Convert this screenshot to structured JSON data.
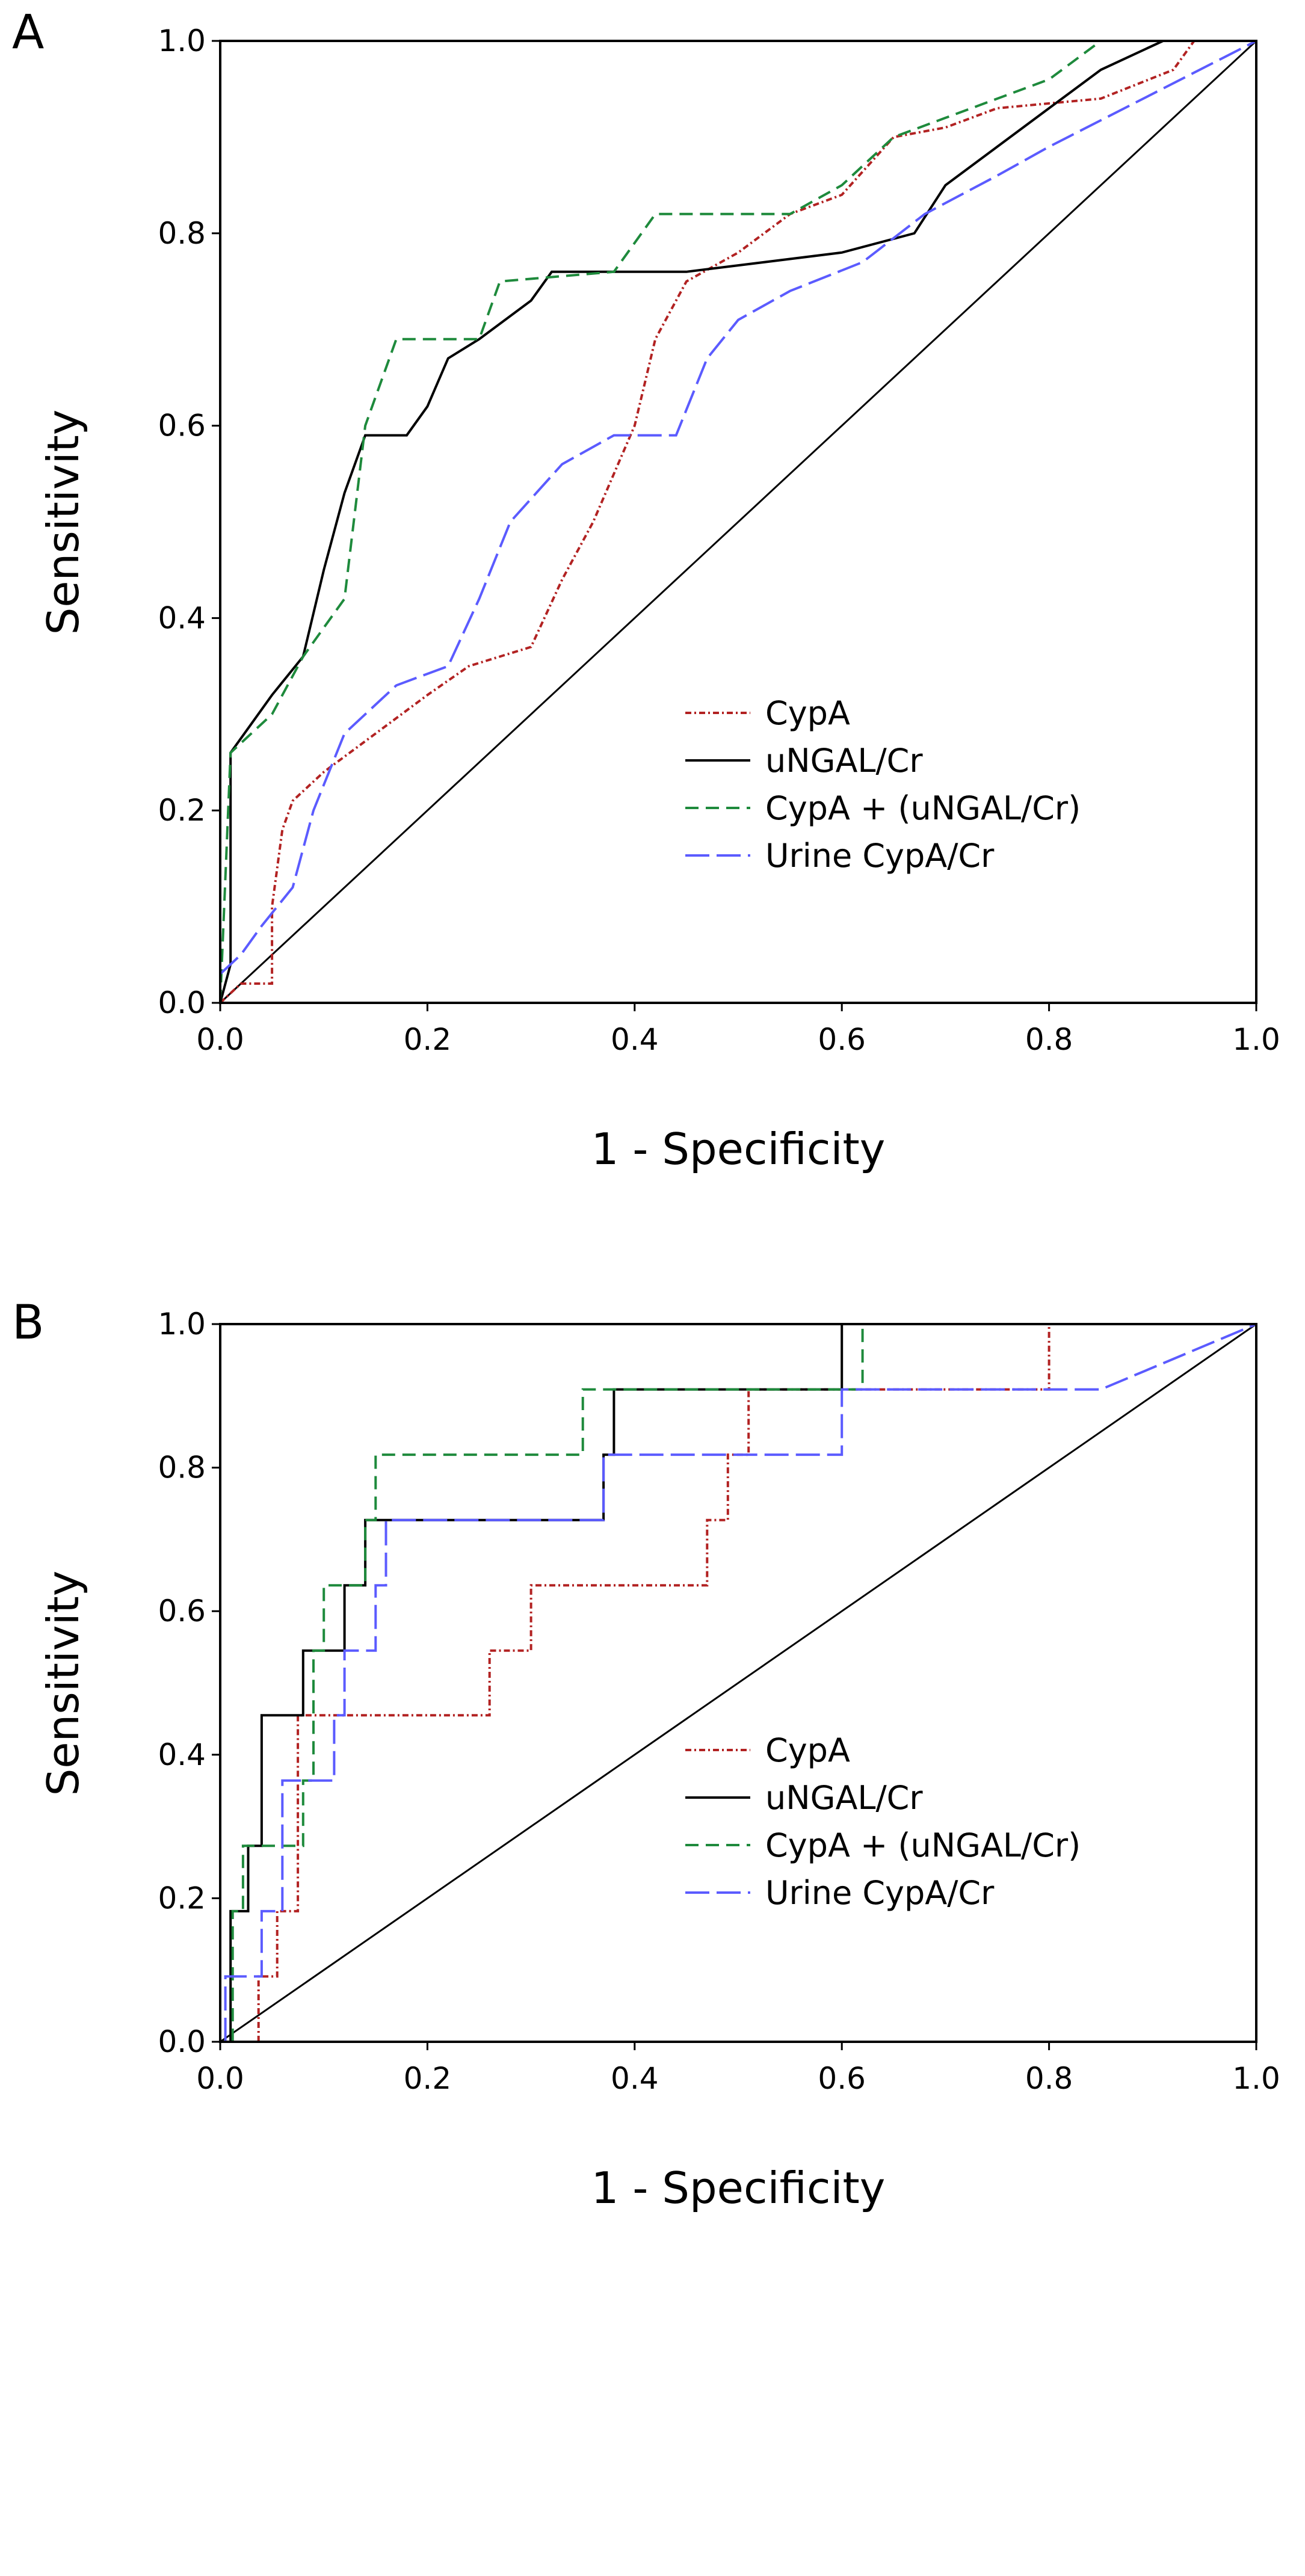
{
  "chart_data": [
    {
      "type": "line",
      "panel_label": "A",
      "xlabel": "1 - Specificity",
      "ylabel": "Sensitivity",
      "xlim": [
        0,
        1
      ],
      "ylim": [
        0,
        1
      ],
      "xticks": [
        "0.0",
        "0.2",
        "0.4",
        "0.6",
        "0.8",
        "1.0"
      ],
      "yticks": [
        "0.0",
        "0.2",
        "0.4",
        "0.6",
        "0.8",
        "1.0"
      ],
      "legend_position": "bottom-right",
      "reference_line": true,
      "series": [
        {
          "name": "CypA",
          "color": "#b22222",
          "dash": "dot-dash",
          "points": [
            [
              0,
              0
            ],
            [
              0.02,
              0.02
            ],
            [
              0.05,
              0.02
            ],
            [
              0.05,
              0.1
            ],
            [
              0.06,
              0.18
            ],
            [
              0.07,
              0.21
            ],
            [
              0.1,
              0.24
            ],
            [
              0.15,
              0.28
            ],
            [
              0.2,
              0.32
            ],
            [
              0.24,
              0.35
            ],
            [
              0.3,
              0.37
            ],
            [
              0.33,
              0.44
            ],
            [
              0.36,
              0.5
            ],
            [
              0.4,
              0.6
            ],
            [
              0.42,
              0.69
            ],
            [
              0.45,
              0.75
            ],
            [
              0.5,
              0.78
            ],
            [
              0.55,
              0.82
            ],
            [
              0.6,
              0.84
            ],
            [
              0.65,
              0.9
            ],
            [
              0.7,
              0.91
            ],
            [
              0.75,
              0.93
            ],
            [
              0.85,
              0.94
            ],
            [
              0.92,
              0.97
            ],
            [
              0.94,
              1.0
            ],
            [
              1,
              1
            ]
          ]
        },
        {
          "name": "uNGAL/Cr",
          "color": "#000000",
          "dash": "solid",
          "points": [
            [
              0,
              0
            ],
            [
              0.01,
              0.04
            ],
            [
              0.01,
              0.26
            ],
            [
              0.03,
              0.29
            ],
            [
              0.05,
              0.32
            ],
            [
              0.08,
              0.36
            ],
            [
              0.1,
              0.45
            ],
            [
              0.12,
              0.53
            ],
            [
              0.14,
              0.59
            ],
            [
              0.18,
              0.59
            ],
            [
              0.2,
              0.62
            ],
            [
              0.22,
              0.67
            ],
            [
              0.25,
              0.69
            ],
            [
              0.3,
              0.73
            ],
            [
              0.32,
              0.76
            ],
            [
              0.45,
              0.76
            ],
            [
              0.6,
              0.78
            ],
            [
              0.67,
              0.8
            ],
            [
              0.7,
              0.85
            ],
            [
              0.75,
              0.89
            ],
            [
              0.8,
              0.93
            ],
            [
              0.85,
              0.97
            ],
            [
              0.91,
              1.0
            ],
            [
              1,
              1
            ]
          ]
        },
        {
          "name": "CypA + (uNGAL/Cr)",
          "color": "#1e8a3c",
          "dash": "dashed",
          "points": [
            [
              0,
              0
            ],
            [
              0.01,
              0.26
            ],
            [
              0.05,
              0.3
            ],
            [
              0.08,
              0.36
            ],
            [
              0.12,
              0.42
            ],
            [
              0.14,
              0.6
            ],
            [
              0.15,
              0.63
            ],
            [
              0.17,
              0.69
            ],
            [
              0.25,
              0.69
            ],
            [
              0.27,
              0.75
            ],
            [
              0.38,
              0.76
            ],
            [
              0.42,
              0.82
            ],
            [
              0.55,
              0.82
            ],
            [
              0.6,
              0.85
            ],
            [
              0.65,
              0.9
            ],
            [
              0.7,
              0.92
            ],
            [
              0.8,
              0.96
            ],
            [
              0.85,
              1.0
            ],
            [
              1,
              1
            ]
          ]
        },
        {
          "name": "Urine CypA/Cr",
          "color": "#5b5bff",
          "dash": "long-dash",
          "points": [
            [
              0,
              0.03
            ],
            [
              0.02,
              0.05
            ],
            [
              0.04,
              0.08
            ],
            [
              0.07,
              0.12
            ],
            [
              0.09,
              0.2
            ],
            [
              0.12,
              0.28
            ],
            [
              0.17,
              0.33
            ],
            [
              0.22,
              0.35
            ],
            [
              0.25,
              0.42
            ],
            [
              0.28,
              0.5
            ],
            [
              0.33,
              0.56
            ],
            [
              0.38,
              0.59
            ],
            [
              0.44,
              0.59
            ],
            [
              0.47,
              0.67
            ],
            [
              0.5,
              0.71
            ],
            [
              0.55,
              0.74
            ],
            [
              0.62,
              0.77
            ],
            [
              0.68,
              0.82
            ],
            [
              0.75,
              0.86
            ],
            [
              0.8,
              0.89
            ],
            [
              1,
              1
            ]
          ]
        }
      ]
    },
    {
      "type": "line",
      "panel_label": "B",
      "xlabel": "1 - Specificity",
      "ylabel": "Sensitivity",
      "xlim": [
        0,
        1
      ],
      "ylim": [
        0,
        1
      ],
      "xticks": [
        "0.0",
        "0.2",
        "0.4",
        "0.6",
        "0.8",
        "1.0"
      ],
      "yticks": [
        "0.0",
        "0.2",
        "0.4",
        "0.6",
        "0.8",
        "1.0"
      ],
      "legend_position": "bottom-right",
      "reference_line": true,
      "series": [
        {
          "name": "CypA",
          "color": "#b22222",
          "dash": "dot-dash",
          "points": [
            [
              0.037,
              0
            ],
            [
              0.037,
              0.091
            ],
            [
              0.055,
              0.091
            ],
            [
              0.055,
              0.182
            ],
            [
              0.075,
              0.182
            ],
            [
              0.075,
              0.455
            ],
            [
              0.26,
              0.455
            ],
            [
              0.26,
              0.545
            ],
            [
              0.3,
              0.545
            ],
            [
              0.3,
              0.636
            ],
            [
              0.47,
              0.636
            ],
            [
              0.47,
              0.727
            ],
            [
              0.49,
              0.727
            ],
            [
              0.49,
              0.818
            ],
            [
              0.51,
              0.818
            ],
            [
              0.51,
              0.909
            ],
            [
              0.8,
              0.909
            ],
            [
              0.8,
              1.0
            ],
            [
              1,
              1
            ]
          ]
        },
        {
          "name": "uNGAL/Cr",
          "color": "#000000",
          "dash": "solid",
          "points": [
            [
              0.01,
              0
            ],
            [
              0.01,
              0.182
            ],
            [
              0.027,
              0.182
            ],
            [
              0.027,
              0.273
            ],
            [
              0.04,
              0.273
            ],
            [
              0.04,
              0.455
            ],
            [
              0.08,
              0.455
            ],
            [
              0.08,
              0.545
            ],
            [
              0.12,
              0.545
            ],
            [
              0.12,
              0.636
            ],
            [
              0.14,
              0.636
            ],
            [
              0.14,
              0.727
            ],
            [
              0.37,
              0.727
            ],
            [
              0.37,
              0.818
            ],
            [
              0.38,
              0.818
            ],
            [
              0.38,
              0.909
            ],
            [
              0.6,
              0.909
            ],
            [
              0.6,
              1.0
            ],
            [
              1,
              1
            ]
          ]
        },
        {
          "name": "CypA + (uNGAL/Cr)",
          "color": "#1e8a3c",
          "dash": "dashed",
          "points": [
            [
              0.012,
              0
            ],
            [
              0.012,
              0.182
            ],
            [
              0.022,
              0.182
            ],
            [
              0.022,
              0.273
            ],
            [
              0.08,
              0.273
            ],
            [
              0.08,
              0.364
            ],
            [
              0.09,
              0.364
            ],
            [
              0.09,
              0.545
            ],
            [
              0.1,
              0.545
            ],
            [
              0.1,
              0.636
            ],
            [
              0.14,
              0.636
            ],
            [
              0.14,
              0.727
            ],
            [
              0.15,
              0.727
            ],
            [
              0.15,
              0.818
            ],
            [
              0.35,
              0.818
            ],
            [
              0.35,
              0.909
            ],
            [
              0.62,
              0.909
            ],
            [
              0.62,
              1.0
            ],
            [
              1,
              1
            ]
          ]
        },
        {
          "name": "Urine CypA/Cr",
          "color": "#5b5bff",
          "dash": "long-dash",
          "points": [
            [
              0.005,
              0
            ],
            [
              0.005,
              0.091
            ],
            [
              0.04,
              0.091
            ],
            [
              0.04,
              0.182
            ],
            [
              0.06,
              0.182
            ],
            [
              0.06,
              0.364
            ],
            [
              0.11,
              0.364
            ],
            [
              0.11,
              0.455
            ],
            [
              0.12,
              0.455
            ],
            [
              0.12,
              0.545
            ],
            [
              0.15,
              0.545
            ],
            [
              0.15,
              0.636
            ],
            [
              0.16,
              0.636
            ],
            [
              0.16,
              0.727
            ],
            [
              0.37,
              0.727
            ],
            [
              0.37,
              0.818
            ],
            [
              0.6,
              0.818
            ],
            [
              0.6,
              0.909
            ],
            [
              0.85,
              0.909
            ],
            [
              1,
              1
            ]
          ]
        }
      ]
    }
  ]
}
